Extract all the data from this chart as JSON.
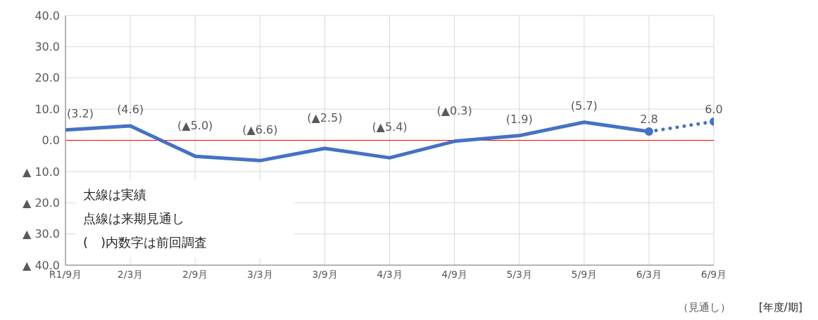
{
  "chart_data": {
    "type": "line",
    "xlabel": "[年度/期]",
    "categories": [
      "R1/9月",
      "2/3月",
      "2/9月",
      "3/3月",
      "3/9月",
      "4/3月",
      "4/9月",
      "5/3月",
      "5/9月",
      "6/3月",
      "6/9月"
    ],
    "series": [
      {
        "color": "#4472c4",
        "line_style": "solid",
        "marker": "none",
        "values": [
          3.3,
          4.6,
          -5.1,
          -6.5,
          -2.6,
          -5.6,
          -0.3,
          1.5,
          5.8,
          2.8,
          null
        ]
      },
      {
        "color": "#4472c4",
        "line_style": "dotted",
        "marker": "circle",
        "values": [
          null,
          null,
          null,
          null,
          null,
          null,
          null,
          null,
          null,
          2.8,
          6.0
        ],
        "value_labels": [
          null,
          null,
          null,
          null,
          null,
          null,
          null,
          null,
          null,
          "2.8",
          "6.0"
        ]
      }
    ],
    "ylim": [
      -40,
      40
    ],
    "yticks": [
      {
        "value": -40,
        "label": "▲ 40.0"
      },
      {
        "value": -30,
        "label": "▲ 30.0"
      },
      {
        "value": -20,
        "label": "▲ 20.0"
      },
      {
        "value": -10,
        "label": "▲ 10.0"
      },
      {
        "value": 0,
        "label": "0.0"
      },
      {
        "value": 10,
        "label": "10.0"
      },
      {
        "value": 20,
        "label": "20.0"
      },
      {
        "value": 30,
        "label": "30.0"
      },
      {
        "value": 40,
        "label": "40.0"
      }
    ],
    "grid": true,
    "ref_lines": [
      {
        "axis": "y",
        "value": 0,
        "color": "#ff0000"
      }
    ],
    "annotations": [
      {
        "text": "(3.2)",
        "x": "R1/9月",
        "y": 3.3
      },
      {
        "text": "(4.6)",
        "x": "2/3月",
        "y": 4.6
      },
      {
        "text": "(▲5.0)",
        "x": "2/9月",
        "y": -5.1
      },
      {
        "text": "(▲6.6)",
        "x": "3/3月",
        "y": -6.5
      },
      {
        "text": "(▲2.5)",
        "x": "3/9月",
        "y": -2.6
      },
      {
        "text": "(▲5.4)",
        "x": "4/3月",
        "y": -5.6
      },
      {
        "text": "(▲0.3)",
        "x": "4/9月",
        "y": -0.3
      },
      {
        "text": "(1.9)",
        "x": "5/3月",
        "y": 1.5
      },
      {
        "text": "(5.7)",
        "x": "5/9月",
        "y": 5.8
      },
      "太線は実績",
      "点線は来期見通し",
      "(　)内数字は前回調査",
      "（見通し）"
    ]
  }
}
